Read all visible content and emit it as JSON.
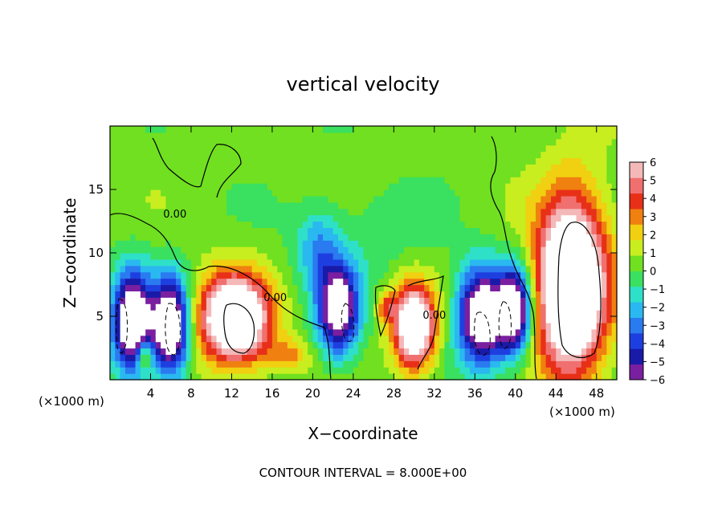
{
  "chart_data": {
    "type": "heatmap",
    "title": "vertical velocity",
    "xlabel": "X−coordinate",
    "ylabel": "Z−coordinate",
    "x_unit": "(×1000 m)",
    "y_unit": "(×1000 m)",
    "footer": "CONTOUR INTERVAL = 8.000E+00",
    "xlim": [
      0,
      50
    ],
    "ylim": [
      0,
      20
    ],
    "xticks": [
      4,
      8,
      12,
      16,
      20,
      24,
      28,
      32,
      36,
      40,
      44,
      48
    ],
    "yticks": [
      5,
      10,
      15
    ],
    "xtick_labels": [
      "4",
      "8",
      "12",
      "16",
      "20",
      "24",
      "28",
      "32",
      "36",
      "40",
      "44",
      "48"
    ],
    "ytick_labels": [
      "5",
      "10",
      "15"
    ],
    "colorbar": {
      "min": -6,
      "max": 6,
      "ticks": [
        6,
        5,
        4,
        3,
        2,
        1,
        0,
        -1,
        -2,
        -3,
        -4,
        -5,
        -6
      ],
      "tick_labels": [
        "6",
        "5",
        "4",
        "3",
        "2",
        "1",
        "0",
        "−1",
        "−2",
        "−3",
        "−4",
        "−5",
        "−6"
      ],
      "colors": [
        "#7a1fa0",
        "#1a1aa8",
        "#1e3fe0",
        "#2a7af0",
        "#2ab8f0",
        "#2ee0c8",
        "#3ae060",
        "#70e020",
        "#c8ee20",
        "#f0d010",
        "#f08010",
        "#e83018",
        "#f07070",
        "#f4b8b8"
      ]
    },
    "contour_labels": [
      {
        "text": "0.00",
        "x": 6.4,
        "y": 12.8
      },
      {
        "text": "0.00",
        "x": 16.3,
        "y": 6.2
      },
      {
        "text": "0.00",
        "x": 32.0,
        "y": 4.8
      }
    ],
    "features": [
      {
        "kind": "down",
        "x": 2.2,
        "z": 4.5,
        "rx": 2.0,
        "rz": 4.0,
        "amp": -9
      },
      {
        "kind": "down",
        "x": 6.0,
        "z": 4.2,
        "rx": 1.8,
        "rz": 3.8,
        "amp": -9
      },
      {
        "kind": "up",
        "x": 12.3,
        "z": 4.8,
        "rx": 3.4,
        "rz": 3.4,
        "amp": 10
      },
      {
        "kind": "up",
        "x": 3.4,
        "z": 2.0,
        "rx": 0.8,
        "rz": 1.2,
        "amp": 4
      },
      {
        "kind": "down",
        "x": 22.5,
        "z": 5.5,
        "rx": 2.0,
        "rz": 3.5,
        "amp": -8
      },
      {
        "kind": "down",
        "x": 20.5,
        "z": 10.5,
        "rx": 2.0,
        "rz": 3.0,
        "amp": -2.5
      },
      {
        "kind": "up",
        "x": 30.0,
        "z": 4.2,
        "rx": 2.0,
        "rz": 3.2,
        "amp": 9
      },
      {
        "kind": "up",
        "x": 27.2,
        "z": 5.8,
        "rx": 0.9,
        "rz": 1.2,
        "amp": 3
      },
      {
        "kind": "down",
        "x": 36.7,
        "z": 5.0,
        "rx": 2.4,
        "rz": 3.8,
        "amp": -9
      },
      {
        "kind": "down",
        "x": 40.0,
        "z": 5.5,
        "rx": 1.6,
        "rz": 3.4,
        "amp": -8
      },
      {
        "kind": "up",
        "x": 45.5,
        "z": 7.5,
        "rx": 3.4,
        "rz": 6.8,
        "amp": 11
      },
      {
        "kind": "up",
        "x": 17.5,
        "z": 2.0,
        "rx": 2.0,
        "rz": 1.2,
        "amp": 2.5
      }
    ]
  }
}
